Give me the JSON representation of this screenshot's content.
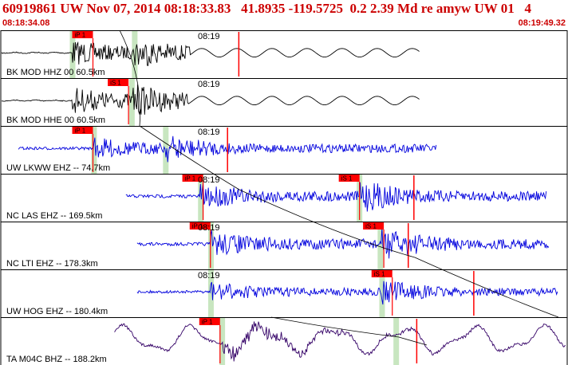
{
  "header": {
    "title": "60919861 UW Nov 07, 2014 08:18:33.83   41.8935 -119.5725  0.2 2.39 Md re amyw UW 01   4",
    "time_start": "08:18:34.08",
    "time_end": "08:19:49.32"
  },
  "colors": {
    "title": "#cc0000",
    "pick_box": "#ff0000",
    "trace_black": "#000000",
    "trace_blue": "#0000dd",
    "trace_purple": "#330066",
    "window_green": "#c8e6c0",
    "border": "#000000"
  },
  "traces": [
    {
      "label": "BK MOD HHZ 00 60.5km",
      "time_label": "08:19",
      "color": "black",
      "picks": [
        {
          "label": "iP 1",
          "frac": 0.125
        }
      ],
      "windows": [
        0.125,
        0.235
      ],
      "start": 0.0,
      "end": 0.74,
      "onset": 0.125,
      "s_onset": 0.235,
      "red_marks": [
        0.42
      ],
      "amplitude": 0.55
    },
    {
      "label": "BK MOD HHE 00 60.5km",
      "time_label": "08:19",
      "color": "black",
      "picks": [
        {
          "label": "iS 1",
          "frac": 0.188
        }
      ],
      "windows": [
        0.23
      ],
      "start": 0.0,
      "end": 0.74,
      "onset": 0.125,
      "s_onset": 0.232,
      "red_marks": [],
      "amplitude": 0.6
    },
    {
      "label": "UW LKWW EHZ -- 74.7km",
      "time_label": "08:19",
      "color": "blue",
      "picks": [
        {
          "label": "iP 1",
          "frac": 0.125
        }
      ],
      "windows": [
        0.163,
        0.29
      ],
      "start": 0.03,
      "end": 0.77,
      "onset": 0.163,
      "s_onset": 0.29,
      "red_marks": [
        0.4
      ],
      "amplitude": 0.5
    },
    {
      "label": "NC LAS EHZ -- 169.5km",
      "time_label": "08:19",
      "color": "blue",
      "picks": [
        {
          "label": "iP 1",
          "frac": 0.32
        },
        {
          "label": "iS 1",
          "frac": 0.597
        }
      ],
      "windows": [
        0.352,
        0.633
      ],
      "start": 0.22,
      "end": 0.965,
      "onset": 0.352,
      "s_onset": 0.633,
      "red_marks": [
        0.73
      ],
      "amplitude": 0.6
    },
    {
      "label": "NC LTI EHZ -- 178.3km",
      "time_label": "08:19",
      "color": "blue",
      "picks": [
        {
          "label": "iP 1",
          "frac": 0.333
        },
        {
          "label": "iS 1",
          "frac": 0.64
        }
      ],
      "windows": [
        0.37,
        0.67
      ],
      "start": 0.24,
      "end": 0.97,
      "onset": 0.37,
      "s_onset": 0.67,
      "red_marks": [
        0.72
      ],
      "amplitude": 0.6
    },
    {
      "label": "UW HOG EHZ -- 180.4km",
      "time_label": "08:19",
      "color": "blue",
      "picks": [
        {
          "label": "iS 1",
          "frac": 0.655
        }
      ],
      "windows": [
        0.37,
        0.673
      ],
      "start": 0.24,
      "end": 0.985,
      "onset": 0.37,
      "s_onset": 0.673,
      "red_marks": [
        0.836
      ],
      "amplitude": 0.45
    },
    {
      "label": "TA M04C BHZ -- 188.2km",
      "time_label": "",
      "color": "purple",
      "picks": [
        {
          "label": "iP 1",
          "frac": 0.35
        }
      ],
      "windows": [
        0.39,
        0.698
      ],
      "start": 0.2,
      "end": 1.0,
      "onset": 0.39,
      "s_onset": 0.7,
      "red_marks": [
        0.735
      ],
      "amplitude": 0.75
    }
  ]
}
